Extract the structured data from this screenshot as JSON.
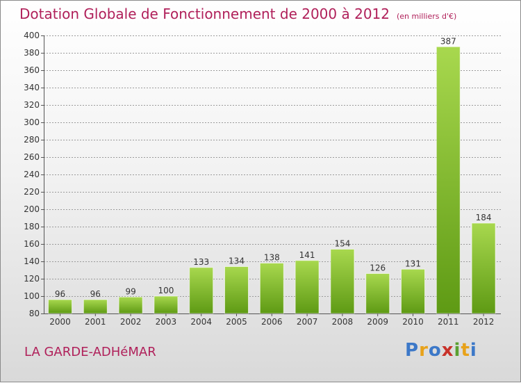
{
  "header": {
    "title": "Dotation Globale de Fonctionnement de 2000 à 2012",
    "unit": "(en milliers d'€)"
  },
  "footer": {
    "commune": "LA GARDE-ADHéMAR",
    "logo_letters": [
      "P",
      "r",
      "o",
      "x",
      "i",
      "t",
      "i"
    ],
    "logo_colors": [
      "#3c78c8",
      "#e8a21a",
      "#3c78c8",
      "#c8322a",
      "#5aa032",
      "#e8a21a",
      "#3c78c8"
    ]
  },
  "colors": {
    "title": "#b0205a",
    "bar_light": "#a8d84e",
    "bar_dark": "#5e9a14",
    "grid": "#9a9a9a"
  },
  "chart_data": {
    "type": "bar",
    "categories": [
      "2000",
      "2001",
      "2002",
      "2003",
      "2004",
      "2005",
      "2006",
      "2007",
      "2008",
      "2009",
      "2010",
      "2011",
      "2012"
    ],
    "values": [
      96,
      96,
      99,
      100,
      133,
      134,
      138,
      141,
      154,
      126,
      131,
      387,
      184
    ],
    "title": "Dotation Globale de Fonctionnement de 2000 à 2012",
    "xlabel": "",
    "ylabel": "",
    "ylim": [
      80,
      400
    ],
    "yticks": [
      80,
      100,
      120,
      140,
      160,
      180,
      200,
      220,
      240,
      260,
      280,
      300,
      320,
      340,
      360,
      380,
      400
    ],
    "grid": true,
    "legend": "none"
  }
}
